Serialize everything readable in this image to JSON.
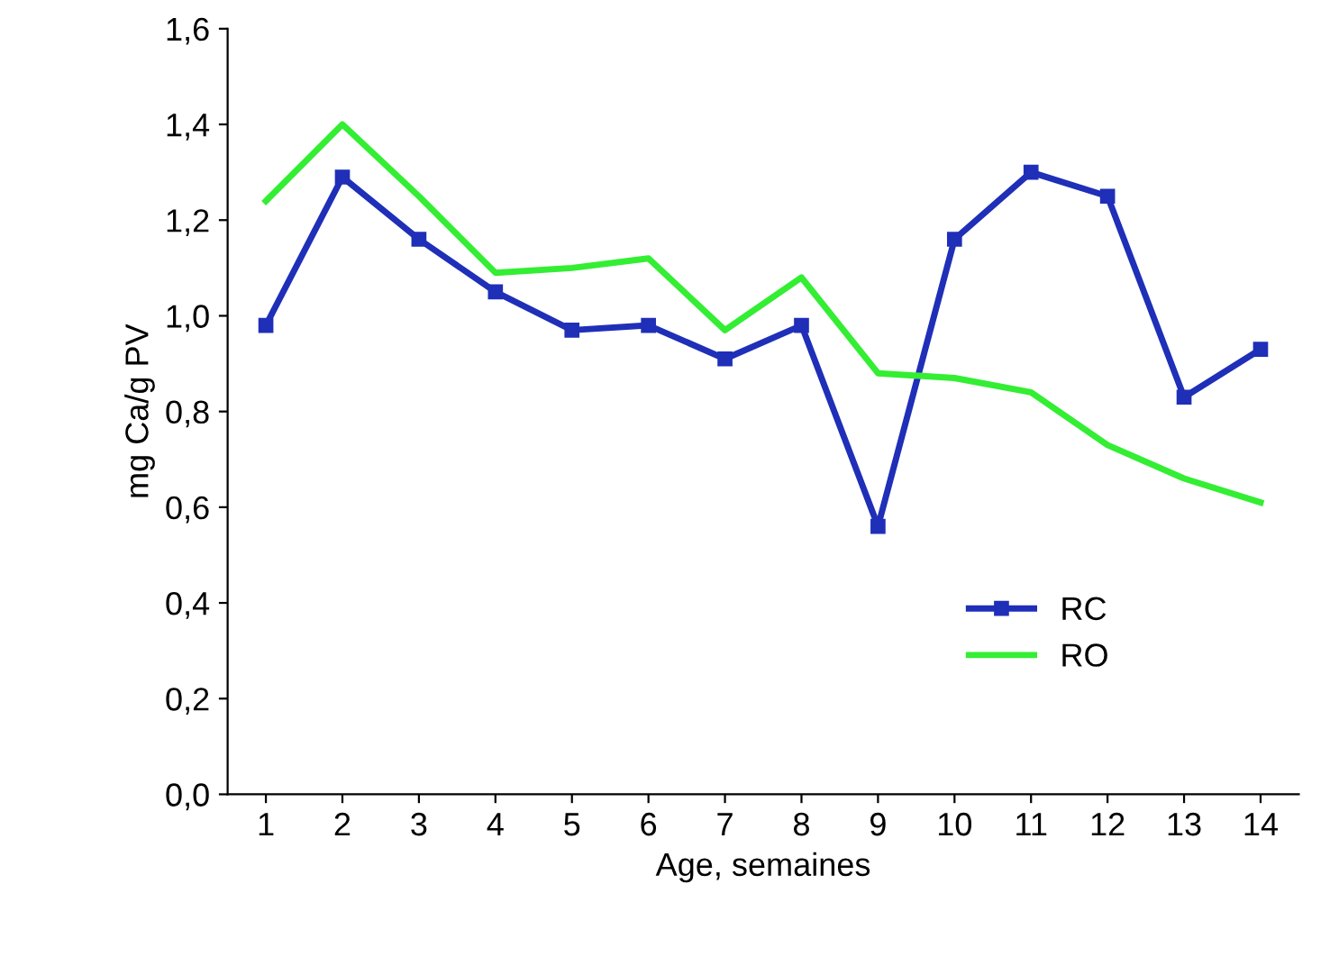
{
  "chart_data": {
    "type": "line",
    "xlabel": "Age, semaines",
    "ylabel": "mg Ca/g PV",
    "categories": [
      "1",
      "2",
      "3",
      "4",
      "5",
      "6",
      "7",
      "8",
      "9",
      "10",
      "11",
      "12",
      "13",
      "14"
    ],
    "series": [
      {
        "name": "RC",
        "color": "#1f2fb8",
        "marker": "square",
        "values": [
          0.98,
          1.29,
          1.16,
          1.05,
          0.97,
          0.98,
          0.91,
          0.98,
          0.56,
          1.16,
          1.3,
          1.25,
          0.83,
          0.93
        ]
      },
      {
        "name": "RO",
        "color": "#33ee33",
        "marker": "none",
        "values": [
          1.24,
          1.4,
          1.25,
          1.09,
          1.1,
          1.12,
          0.97,
          1.08,
          0.88,
          0.87,
          0.84,
          0.73,
          0.66,
          0.61
        ]
      }
    ],
    "ylim": [
      0,
      1.6
    ],
    "yticks": [
      {
        "value": 0,
        "label": "0,0"
      },
      {
        "value": 0.2,
        "label": "0,2"
      },
      {
        "value": 0.4,
        "label": "0,4"
      },
      {
        "value": 0.6,
        "label": "0,6"
      },
      {
        "value": 0.8,
        "label": "0,8"
      },
      {
        "value": 1.0,
        "label": "1,0"
      },
      {
        "value": 1.2,
        "label": "1,2"
      },
      {
        "value": 1.4,
        "label": "1,4"
      },
      {
        "value": 1.6,
        "label": "1,6"
      }
    ],
    "grid": false,
    "legend": "bottom right",
    "line_style": "solid"
  }
}
